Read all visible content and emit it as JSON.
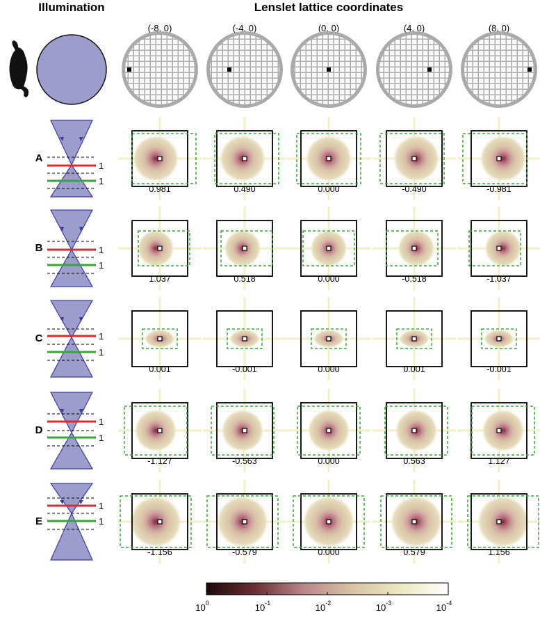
{
  "header": {
    "left": "Illumination",
    "right": "Lenslet lattice coordinates"
  },
  "columns": [
    "(-8, 0)",
    "(-4, 0)",
    "(0, 0)",
    "(4, 0)",
    "(8, 0)"
  ],
  "rows": [
    {
      "label": "A",
      "line_labels": [
        "1",
        "1"
      ],
      "values": [
        "0.981",
        "0.490",
        "0.000",
        "-0.490",
        "-0.981"
      ]
    },
    {
      "label": "B",
      "line_labels": [
        "1",
        "1"
      ],
      "values": [
        "1.037",
        "0.518",
        "0.000",
        "-0.518",
        "-1.037"
      ]
    },
    {
      "label": "C",
      "line_labels": [
        "1",
        "1"
      ],
      "values": [
        "0.001",
        "-0.001",
        "0.000",
        "0.001",
        "-0.001"
      ]
    },
    {
      "label": "D",
      "line_labels": [
        "1",
        "1"
      ],
      "values": [
        "-1.127",
        "-0.563",
        "0.000",
        "0.563",
        "1.127"
      ]
    },
    {
      "label": "E",
      "line_labels": [
        "1",
        "1"
      ],
      "values": [
        "-1.156",
        "-0.579",
        "0.000",
        "0.579",
        "1.156"
      ]
    }
  ],
  "colorbar": {
    "ticks": [
      {
        "base": "10",
        "exponent": "0"
      },
      {
        "base": "10",
        "exponent": "-1"
      },
      {
        "base": "10",
        "exponent": "-2"
      },
      {
        "base": "10",
        "exponent": "-3"
      },
      {
        "base": "10",
        "exponent": "-4"
      }
    ]
  }
}
